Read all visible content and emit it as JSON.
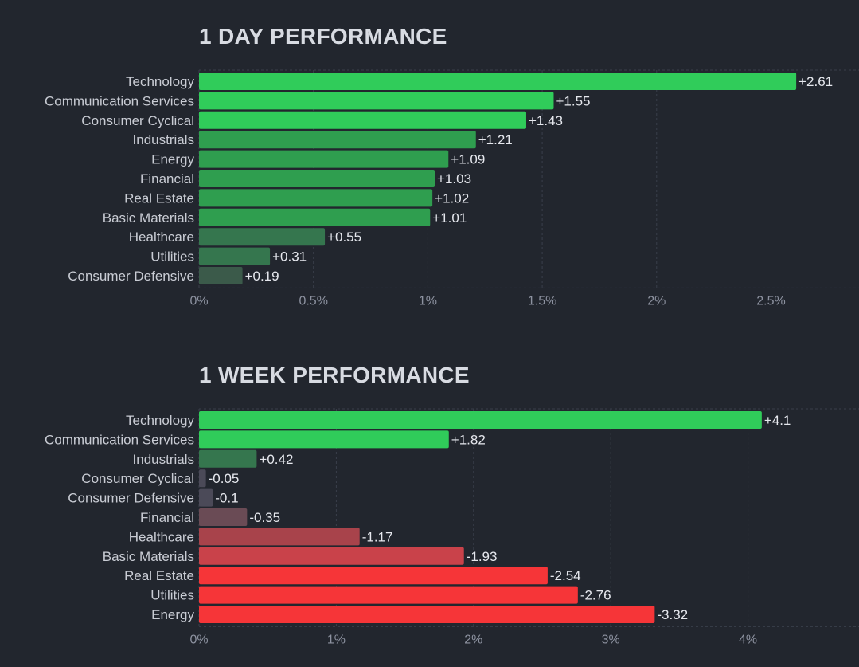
{
  "colors": {
    "background": "#22262e",
    "pos_strong": "#30cc5a",
    "pos_mid": "#2f9e4f",
    "pos_weak": "#35764e",
    "neg_weak": "#4b4a58",
    "neg_mid": "#8b444f",
    "neg_strong": "#f63538"
  },
  "chart_data": [
    {
      "type": "bar",
      "orientation": "horizontal",
      "title": "1 DAY PERFORMANCE",
      "categories": [
        "Technology",
        "Communication Services",
        "Consumer Cyclical",
        "Industrials",
        "Energy",
        "Financial",
        "Real Estate",
        "Basic Materials",
        "Healthcare",
        "Utilities",
        "Consumer Defensive"
      ],
      "values": [
        2.61,
        1.55,
        1.43,
        1.21,
        1.09,
        1.03,
        1.02,
        1.01,
        0.55,
        0.31,
        0.19
      ],
      "value_labels": [
        "+2.61",
        "+1.55",
        "+1.43",
        "+1.21",
        "+1.09",
        "+1.03",
        "+1.02",
        "+1.01",
        "+0.55",
        "+0.31",
        "+0.19"
      ],
      "xticks": [
        0,
        0.5,
        1,
        1.5,
        2,
        2.5
      ],
      "xtick_labels": [
        "0%",
        "0.5%",
        "1%",
        "1.5%",
        "2%",
        "2.5%"
      ],
      "xlim": [
        0,
        2.9
      ],
      "grid": true
    },
    {
      "type": "bar",
      "orientation": "horizontal",
      "title": "1 WEEK PERFORMANCE",
      "categories": [
        "Technology",
        "Communication Services",
        "Industrials",
        "Consumer Cyclical",
        "Consumer Defensive",
        "Financial",
        "Healthcare",
        "Basic Materials",
        "Real Estate",
        "Utilities",
        "Energy"
      ],
      "values": [
        4.1,
        1.82,
        0.42,
        -0.05,
        -0.1,
        -0.35,
        -1.17,
        -1.93,
        -2.54,
        -2.76,
        -3.32
      ],
      "value_labels": [
        "+4.1",
        "+1.82",
        "+0.42",
        "-0.05",
        "-0.1",
        "-0.35",
        "-1.17",
        "-1.93",
        "-2.54",
        "-2.76",
        "-3.32"
      ],
      "xticks": [
        0,
        1,
        2,
        3,
        4
      ],
      "xtick_labels": [
        "0%",
        "1%",
        "2%",
        "3%",
        "4%"
      ],
      "xlim": [
        0,
        4.8
      ],
      "grid": true,
      "note": "bars drawn by absolute magnitude"
    }
  ]
}
